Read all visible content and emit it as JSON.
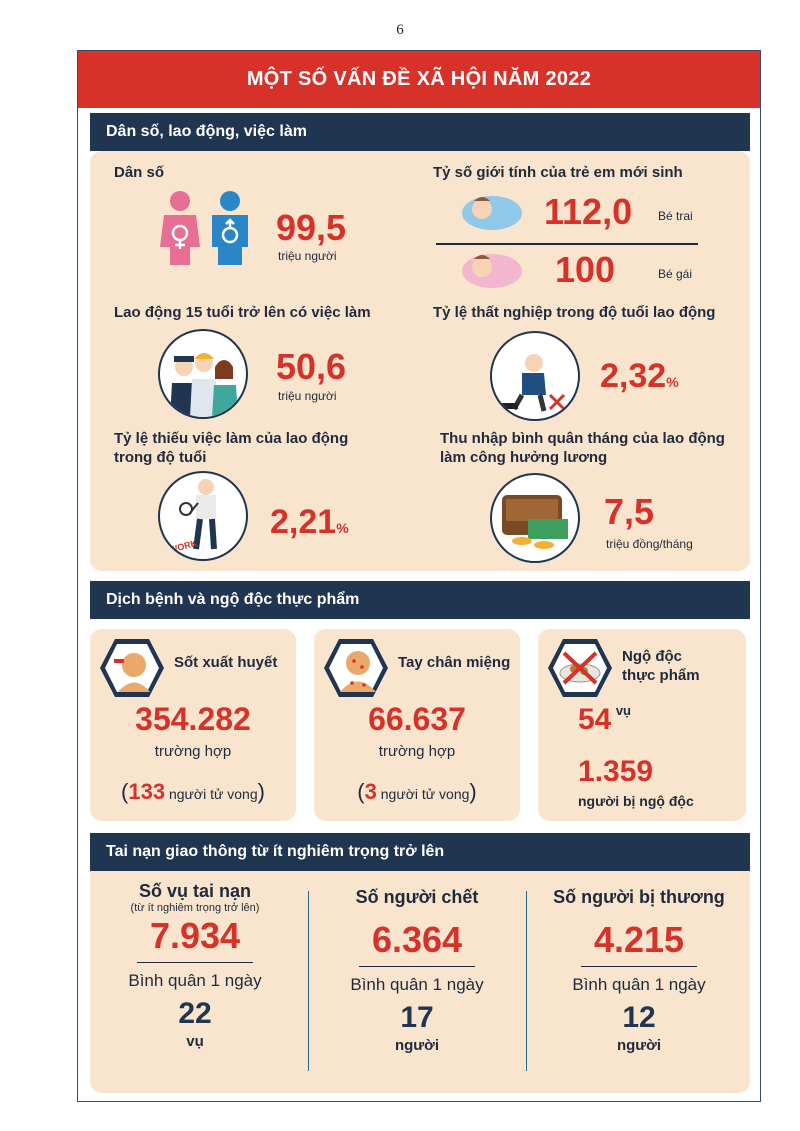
{
  "page_number": "6",
  "title": "MỘT SỐ VẤN ĐỀ XÃ HỘI NĂM 2022",
  "sections": {
    "population": {
      "header": "Dân số, lao động, việc làm",
      "dan_so": {
        "label": "Dân số",
        "value": "99,5",
        "unit": "triệu người"
      },
      "sex_ratio": {
        "label": "Tỷ số giới tính của trẻ em mới sinh",
        "boy_value": "112,0",
        "boy_label": "Bé trai",
        "girl_value": "100",
        "girl_label": "Bé gái"
      },
      "employed": {
        "label": "Lao động 15 tuổi trở lên có việc làm",
        "value": "50,6",
        "unit": "triệu người"
      },
      "unemployment": {
        "label": "Tỷ lệ thất nghiệp trong độ tuổi lao động",
        "value": "2,32",
        "unit": "%"
      },
      "underemployment": {
        "label_line1": "Tỷ lệ thiếu việc làm của lao động",
        "label_line2": "trong độ tuổi",
        "value": "2,21",
        "unit": "%",
        "sign_text": "WORK"
      },
      "income": {
        "label_line1": "Thu nhập bình quân tháng của lao động",
        "label_line2": "làm công hưởng lương",
        "value": "7,5",
        "unit": "triệu đồng/tháng"
      }
    },
    "disease": {
      "header": "Dịch bệnh và ngộ độc thực phẩm",
      "dengue": {
        "label": "Sốt xuất huyết",
        "value": "354.282",
        "unit": "trường hợp",
        "deaths": "133",
        "deaths_label": "người tử vong"
      },
      "hfmd": {
        "label": "Tay chân miệng",
        "value": "66.637",
        "unit": "trường hợp",
        "deaths": "3",
        "deaths_label": "người tử vong"
      },
      "food_poison": {
        "label_line1": "Ngộ độc",
        "label_line2": "thực phẩm",
        "cases": "54",
        "cases_unit": "vụ",
        "people": "1.359",
        "people_label": "người bị ngộ độc"
      }
    },
    "traffic": {
      "header": "Tai nạn giao thông từ ít nghiêm trọng trở lên",
      "accidents": {
        "label": "Số vụ tai nạn",
        "sublabel": "(từ ít nghiêm trọng trở lên)",
        "value": "7.934",
        "avg_label": "Bình quân 1 ngày",
        "avg_value": "22",
        "avg_unit": "vụ"
      },
      "deaths": {
        "label": "Số người chết",
        "value": "6.364",
        "avg_label": "Bình quân 1 ngày",
        "avg_value": "17",
        "avg_unit": "người"
      },
      "injured": {
        "label": "Số người bị thương",
        "value": "4.215",
        "avg_label": "Bình quân 1 ngày",
        "avg_value": "12",
        "avg_unit": "người"
      }
    }
  },
  "colors": {
    "red": "#d7322a",
    "navy": "#1f3550",
    "beige": "#f9e4cd",
    "pink": "#e66f93",
    "blue": "#2b86c7"
  }
}
